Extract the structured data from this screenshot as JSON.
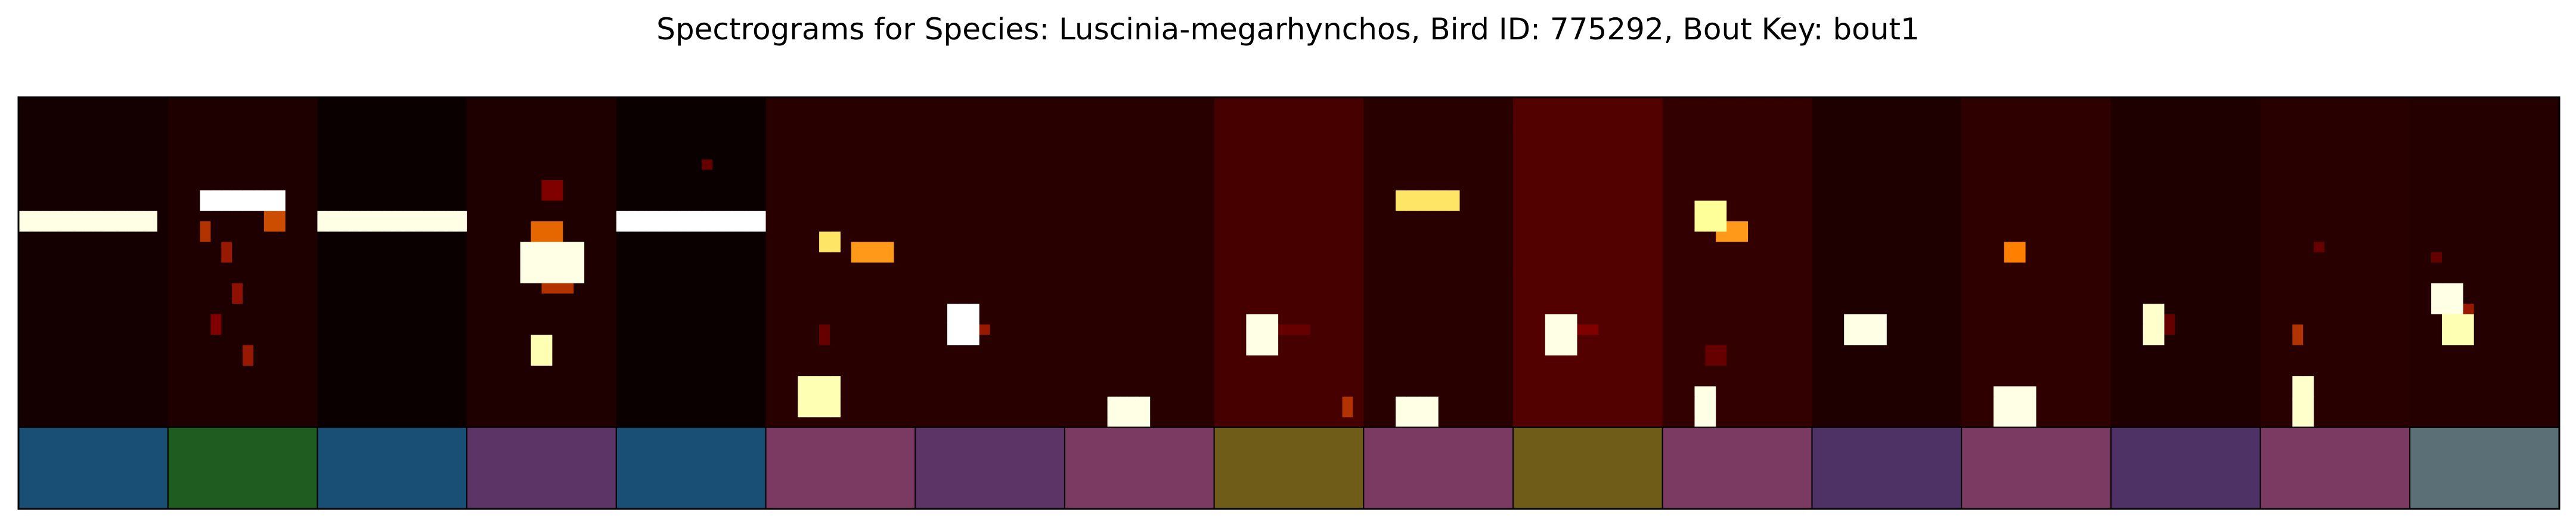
{
  "chart_data": {
    "type": "heatmap",
    "title": "Spectrograms for Species: Luscinia-megarhynchos, Bird ID: 775292, Bout Key: bout1",
    "xlabel": "",
    "ylabel": "",
    "grid": false,
    "colormap": "afmhot",
    "freq_bins": 32,
    "time_bins": 14,
    "segments": [
      {
        "bg": 0.04,
        "label_color": "#1a4f75",
        "events": [
          {
            "t": [
              0.1,
              12.9
            ],
            "f": [
              19.5,
              20.8
            ],
            "v": 0.95
          }
        ]
      },
      {
        "bg": 0.06,
        "label_color": "#1f5c1f",
        "events": [
          {
            "t": [
              3,
              10.5
            ],
            "f": [
              21.6,
              22.8
            ],
            "v": 1.0
          },
          {
            "t": [
              3,
              4
            ],
            "f": [
              18.2,
              19.3
            ],
            "v": 0.35
          },
          {
            "t": [
              5,
              6
            ],
            "f": [
              16,
              17.3
            ],
            "v": 0.3
          },
          {
            "t": [
              9,
              10.3
            ],
            "f": [
              19,
              20.2
            ],
            "v": 0.4
          },
          {
            "t": [
              6,
              7
            ],
            "f": [
              12.5,
              13.6
            ],
            "v": 0.28
          },
          {
            "t": [
              4,
              5
            ],
            "f": [
              9.3,
              10.5
            ],
            "v": 0.25
          },
          {
            "t": [
              7,
              8
            ],
            "f": [
              6.2,
              7.4
            ],
            "v": 0.3
          }
        ]
      },
      {
        "bg": 0.02,
        "label_color": "#1a4f75",
        "events": [
          {
            "t": [
              0.5,
              13.2
            ],
            "f": [
              19.5,
              20.8
            ],
            "v": 0.95
          }
        ]
      },
      {
        "bg": 0.06,
        "label_color": "#5c3566",
        "events": [
          {
            "t": [
              5.5,
              10.5
            ],
            "f": [
              14.5,
              18
            ],
            "v": 0.95
          },
          {
            "t": [
              6,
              9
            ],
            "f": [
              18,
              19.2
            ],
            "v": 0.45
          },
          {
            "t": [
              7,
              10
            ],
            "f": [
              13,
              14
            ],
            "v": 0.35
          },
          {
            "t": [
              6,
              8
            ],
            "f": [
              6.5,
              8.2
            ],
            "v": 0.85
          },
          {
            "t": [
              7,
              9
            ],
            "f": [
              22.5,
              23.5
            ],
            "v": 0.25
          }
        ]
      },
      {
        "bg": 0.02,
        "label_color": "#1a4f75",
        "events": [
          {
            "t": [
              0.5,
              13.8
            ],
            "f": [
              19.4,
              20.8
            ],
            "v": 1.0
          },
          {
            "t": [
              8,
              9
            ],
            "f": [
              25,
              26
            ],
            "v": 0.2
          }
        ]
      },
      {
        "bg": 0.08,
        "label_color": "#7b3a62",
        "events": [
          {
            "t": [
              5.5,
              7
            ],
            "f": [
              17.5,
              18.6
            ],
            "v": 0.7
          },
          {
            "t": [
              8,
              12
            ],
            "f": [
              16.8,
              17.8
            ],
            "v": 0.55
          },
          {
            "t": [
              3.5,
              6.5
            ],
            "f": [
              1,
              4.5
            ],
            "v": 0.85
          },
          {
            "t": [
              5,
              6
            ],
            "f": [
              8.5,
              9.5
            ],
            "v": 0.2
          }
        ]
      },
      {
        "bg": 0.08,
        "label_color": "#5c3566",
        "events": [
          {
            "t": [
              3.5,
              5.5
            ],
            "f": [
              8.5,
              11.5
            ],
            "v": 1.0
          },
          {
            "t": [
              5.5,
              7
            ],
            "f": [
              9,
              10
            ],
            "v": 0.3
          }
        ]
      },
      {
        "bg": 0.08,
        "label_color": "#7b3a62",
        "events": [
          {
            "t": [
              4.5,
              7.5
            ],
            "f": [
              0.3,
              3
            ],
            "v": 0.95
          }
        ]
      },
      {
        "bg": 0.14,
        "label_color": "#6e5c18",
        "events": [
          {
            "t": [
              3.5,
              5.5
            ],
            "f": [
              7.5,
              11
            ],
            "v": 0.95
          },
          {
            "t": [
              5.5,
              9
            ],
            "f": [
              9,
              10
            ],
            "v": 0.2
          },
          {
            "t": [
              12,
              13
            ],
            "f": [
              1.5,
              2.6
            ],
            "v": 0.35
          }
        ]
      },
      {
        "bg": 0.08,
        "label_color": "#7b3a62",
        "events": [
          {
            "t": [
              3.5,
              9
            ],
            "f": [
              21.4,
              22.5
            ],
            "v": 0.7
          },
          {
            "t": [
              3.5,
              7
            ],
            "f": [
              0.3,
              3
            ],
            "v": 0.95
          }
        ]
      },
      {
        "bg": 0.16,
        "label_color": "#6e5c18",
        "events": [
          {
            "t": [
              3.5,
              5.5
            ],
            "f": [
              7.5,
              11
            ],
            "v": 0.95
          },
          {
            "t": [
              5.5,
              8
            ],
            "f": [
              9,
              10
            ],
            "v": 0.25
          }
        ]
      },
      {
        "bg": 0.1,
        "label_color": "#7b3a62",
        "events": [
          {
            "t": [
              3.5,
              5.5
            ],
            "f": [
              19.8,
              21.2
            ],
            "v": 0.8
          },
          {
            "t": [
              5.5,
              8
            ],
            "f": [
              18.8,
              20
            ],
            "v": 0.55
          },
          {
            "t": [
              3.5,
              5
            ],
            "f": [
              0.3,
              3.5
            ],
            "v": 0.95
          },
          {
            "t": [
              4.5,
              5.5
            ],
            "f": [
              6.5,
              7.5
            ],
            "v": 0.2
          }
        ]
      },
      {
        "bg": 0.06,
        "label_color": "#4e3266",
        "events": [
          {
            "t": [
              3.5,
              6.5
            ],
            "f": [
              8.5,
              11
            ],
            "v": 0.95
          }
        ]
      },
      {
        "bg": 0.09,
        "label_color": "#7b3a62",
        "events": [
          {
            "t": [
              3,
              6.5
            ],
            "f": [
              0.5,
              4
            ],
            "v": 0.95
          },
          {
            "t": [
              4,
              5.5
            ],
            "f": [
              16.3,
              17.5
            ],
            "v": 0.5
          }
        ]
      },
      {
        "bg": 0.06,
        "label_color": "#4e3266",
        "events": [
          {
            "t": [
              3,
              4.5
            ],
            "f": [
              8.5,
              11.5
            ],
            "v": 0.9
          },
          {
            "t": [
              4.5,
              5.5
            ],
            "f": [
              9.5,
              10.5
            ],
            "v": 0.2
          }
        ]
      },
      {
        "bg": 0.08,
        "label_color": "#7b3a62",
        "events": [
          {
            "t": [
              3,
              5
            ],
            "f": [
              0.3,
              4.5
            ],
            "v": 0.9
          },
          {
            "t": [
              3,
              4
            ],
            "f": [
              8.5,
              9.5
            ],
            "v": 0.35
          },
          {
            "t": [
              5,
              6
            ],
            "f": [
              17,
              18
            ],
            "v": 0.2
          }
        ]
      },
      {
        "bg": 0.07,
        "label_color": "#5a6f76",
        "events": [
          {
            "t": [
              2,
              5
            ],
            "f": [
              11,
              14
            ],
            "v": 0.95
          },
          {
            "t": [
              3.5,
              5.5
            ],
            "f": [
              8.5,
              11
            ],
            "v": 0.85
          },
          {
            "t": [
              5,
              6
            ],
            "f": [
              11,
              12
            ],
            "v": 0.3
          },
          {
            "t": [
              2,
              3
            ],
            "f": [
              16,
              17
            ],
            "v": 0.2
          }
        ]
      }
    ]
  }
}
